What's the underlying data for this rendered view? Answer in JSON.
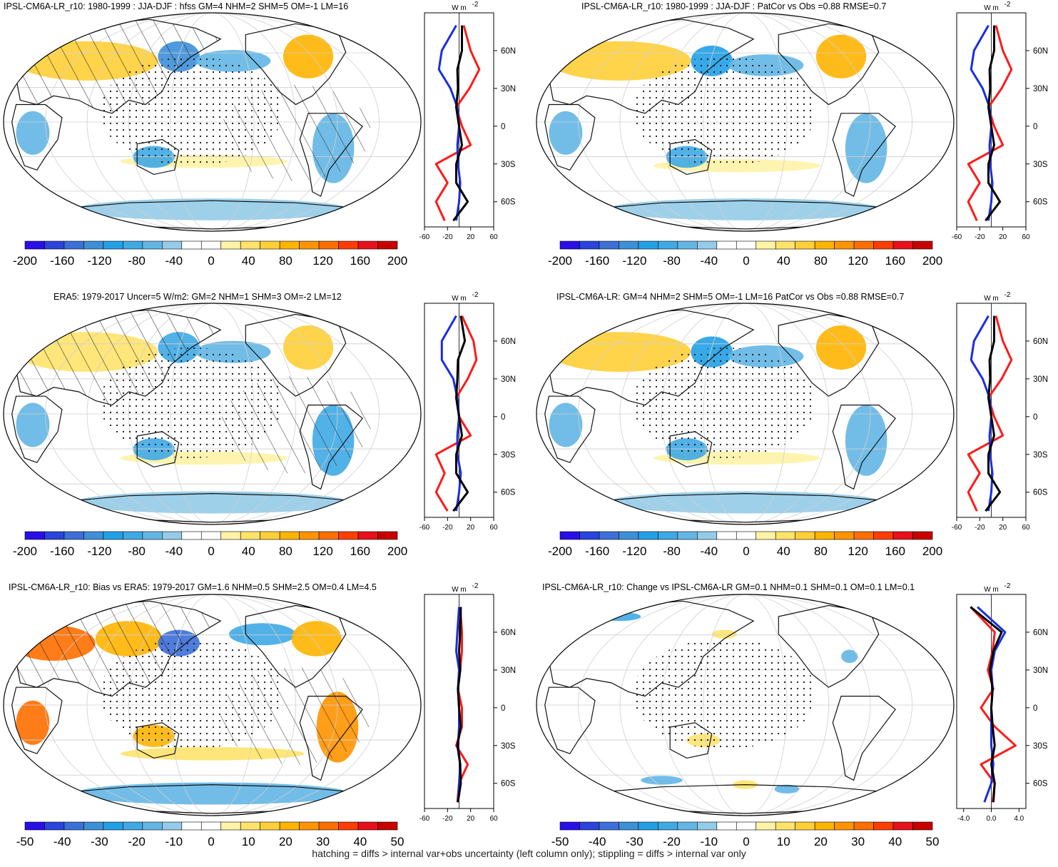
{
  "footer": "hatching = diffs > internal var+obs uncertainty (left column only); stippling = diffs > internal var only",
  "colors": {
    "colorbar": [
      "#2a0ee8",
      "#2a44dd",
      "#3c6fd8",
      "#3d8fd8",
      "#22a0e6",
      "#3fa9e4",
      "#63b6e4",
      "#94cbe8",
      "#ffffff",
      "#ffffff",
      "#fff3a6",
      "#ffe36b",
      "#ffcf37",
      "#ffb400",
      "#ff9400",
      "#ff6f00",
      "#ff3d00",
      "#e8101a",
      "#c80000"
    ],
    "land": "#dcdcdc",
    "grid": "#cfcfcf",
    "profile_obs": "#ff1a1a",
    "profile_model": "#1a2ee0",
    "profile_diff": "#000000"
  },
  "panels": [
    {
      "title": "IPSL-CM6A-LR_r10: 1980-1999 : JJA-DJF : hfss GM=4 NHM=2 SHM=5 OM=-1 LM=16",
      "colorbar_labels": [
        "-200",
        "-160",
        "-120",
        "-80",
        "-40",
        "0",
        "40",
        "80",
        "120",
        "160",
        "200"
      ],
      "profile_ticks": [
        "-60",
        "-20",
        "20",
        "60"
      ],
      "profile_unit": "W m",
      "lat_labels": [
        "60N",
        "30N",
        "0",
        "30S",
        "60S"
      ]
    },
    {
      "title": "IPSL-CM6A-LR_r10: 1980-1999 : JJA-DJF : PatCor vs Obs =0.88 RMSE=0.7",
      "colorbar_labels": [
        "-200",
        "-160",
        "-120",
        "-80",
        "-40",
        "0",
        "40",
        "80",
        "120",
        "160",
        "200"
      ],
      "profile_ticks": [
        "-60",
        "-20",
        "20",
        "60"
      ],
      "profile_unit": "W m",
      "lat_labels": [
        "60N",
        "30N",
        "0",
        "30S",
        "60S"
      ]
    },
    {
      "title": "ERA5: 1979-2017 Uncer=5 W/m2: GM=2 NHM=1 SHM=3 OM=-2 LM=12",
      "colorbar_labels": [
        "-200",
        "-160",
        "-120",
        "-80",
        "-40",
        "0",
        "40",
        "80",
        "120",
        "160",
        "200"
      ],
      "profile_ticks": [
        "-60",
        "-20",
        "20",
        "60"
      ],
      "profile_unit": "W m",
      "lat_labels": [
        "60N",
        "30N",
        "0",
        "30S",
        "60S"
      ]
    },
    {
      "title": "IPSL-CM6A-LR: GM=4 NHM=2 SHM=5 OM=-1 LM=16 PatCor vs Obs =0.88 RMSE=0.7",
      "colorbar_labels": [
        "-200",
        "-160",
        "-120",
        "-80",
        "-40",
        "0",
        "40",
        "80",
        "120",
        "160",
        "200"
      ],
      "profile_ticks": [
        "-60",
        "-20",
        "20",
        "60"
      ],
      "profile_unit": "W m",
      "lat_labels": [
        "60N",
        "30N",
        "0",
        "30S",
        "60S"
      ]
    },
    {
      "title": "IPSL-CM6A-LR_r10: Bias vs ERA5: 1979-2017 GM=1.6 NHM=0.5 SHM=2.5 OM=0.4 LM=4.5",
      "colorbar_labels": [
        "-50",
        "-40",
        "-30",
        "-20",
        "-10",
        "0",
        "10",
        "20",
        "30",
        "40",
        "50"
      ],
      "profile_ticks": [
        "-60",
        "-20",
        "20",
        "60"
      ],
      "profile_unit": "W m",
      "lat_labels": [
        "60N",
        "30N",
        "0",
        "30S",
        "60S"
      ]
    },
    {
      "title": "IPSL-CM6A-LR_r10: Change vs IPSL-CM6A-LR GM=0.1 NHM=0.1 SHM=0.1 OM=0.1 LM=0.1",
      "colorbar_labels": [
        "-50",
        "-40",
        "-30",
        "-20",
        "-10",
        "0",
        "10",
        "20",
        "30",
        "40",
        "50"
      ],
      "profile_ticks": [
        "-4.0",
        "0.0",
        "4.0"
      ],
      "profile_unit": "W m",
      "lat_labels": [
        "60N",
        "30N",
        "0",
        "30S",
        "60S"
      ]
    }
  ],
  "chart_data": [
    {
      "type": "heatmap",
      "title": "IPSL-CM6A-LR_r10: 1980-1999 : JJA-DJF : hfss GM=4 NHM=2 SHM=5 OM=-1 LM=16",
      "colorbar": [
        -200,
        -160,
        -120,
        -80,
        -40,
        0,
        40,
        80,
        120,
        160,
        200
      ],
      "profile": {
        "type": "line",
        "xlim": [
          -60,
          60
        ],
        "lat": [
          80,
          60,
          45,
          30,
          15,
          0,
          -15,
          -30,
          -45,
          -60,
          -75
        ],
        "series": [
          {
            "values": [
              8,
              20,
              35,
              18,
              -5,
              5,
              20,
              -40,
              -20,
              -40,
              -25
            ]
          },
          {
            "values": [
              -5,
              -30,
              -35,
              -15,
              -3,
              0,
              -3,
              -2,
              2,
              0,
              -5
            ]
          },
          {
            "values": [
              5,
              5,
              -3,
              -2,
              -5,
              0,
              5,
              -5,
              -5,
              15,
              -10
            ]
          }
        ]
      }
    },
    {
      "type": "heatmap",
      "title": "IPSL-CM6A-LR_r10: 1980-1999 : JJA-DJF : PatCor vs Obs =0.88 RMSE=0.7",
      "colorbar": [
        -200,
        -160,
        -120,
        -80,
        -40,
        0,
        40,
        80,
        120,
        160,
        200
      ],
      "profile": {
        "type": "line",
        "xlim": [
          -60,
          60
        ],
        "lat": [
          80,
          60,
          45,
          30,
          15,
          0,
          -15,
          -30,
          -45,
          -60,
          -75
        ],
        "series": [
          {
            "values": [
              8,
              20,
              35,
              18,
              -5,
              5,
              20,
              -40,
              -20,
              -40,
              -25
            ]
          },
          {
            "values": [
              -5,
              -30,
              -35,
              -15,
              -3,
              0,
              -3,
              -2,
              2,
              0,
              -5
            ]
          },
          {
            "values": [
              5,
              5,
              -3,
              -2,
              -5,
              0,
              5,
              -5,
              -5,
              15,
              -10
            ]
          }
        ]
      }
    },
    {
      "type": "heatmap",
      "title": "ERA5: 1979-2017 Uncer=5 W/m2: GM=2 NHM=1 SHM=3 OM=-2 LM=12",
      "colorbar": [
        -200,
        -160,
        -120,
        -80,
        -40,
        0,
        40,
        80,
        120,
        160,
        200
      ],
      "profile": {
        "type": "line",
        "xlim": [
          -60,
          60
        ],
        "lat": [
          80,
          60,
          45,
          30,
          15,
          0,
          -15,
          -30,
          -45,
          -60,
          -75
        ],
        "series": [
          {
            "values": [
              5,
              25,
              30,
              15,
              -5,
              0,
              20,
              -40,
              -25,
              -40,
              -20
            ]
          },
          {
            "values": [
              -5,
              -30,
              -30,
              -10,
              -3,
              0,
              -3,
              -3,
              3,
              0,
              -5
            ]
          },
          {
            "values": [
              3,
              10,
              -2,
              -3,
              -5,
              0,
              5,
              -5,
              -5,
              15,
              -10
            ]
          }
        ]
      }
    },
    {
      "type": "heatmap",
      "title": "IPSL-CM6A-LR: GM=4 NHM=2 SHM=5 OM=-1 LM=16 PatCor vs Obs =0.88 RMSE=0.7",
      "colorbar": [
        -200,
        -160,
        -120,
        -80,
        -40,
        0,
        40,
        80,
        120,
        160,
        200
      ],
      "profile": {
        "type": "line",
        "xlim": [
          -60,
          60
        ],
        "lat": [
          80,
          60,
          45,
          30,
          15,
          0,
          -15,
          -30,
          -45,
          -60,
          -75
        ],
        "series": [
          {
            "values": [
              8,
              20,
              35,
              18,
              -5,
              5,
              20,
              -40,
              -20,
              -40,
              -25
            ]
          },
          {
            "values": [
              -5,
              -30,
              -35,
              -15,
              -3,
              0,
              -3,
              -2,
              2,
              0,
              -5
            ]
          },
          {
            "values": [
              5,
              5,
              -3,
              -2,
              -5,
              0,
              5,
              -5,
              -5,
              15,
              -10
            ]
          }
        ]
      }
    },
    {
      "type": "heatmap",
      "title": "IPSL-CM6A-LR_r10: Bias vs ERA5: 1979-2017 GM=1.6 NHM=0.5 SHM=2.5 OM=0.4 LM=4.5",
      "colorbar": [
        -50,
        -40,
        -30,
        -20,
        -10,
        0,
        10,
        20,
        30,
        40,
        50
      ],
      "profile": {
        "type": "line",
        "xlim": [
          -60,
          60
        ],
        "lat": [
          80,
          60,
          45,
          30,
          15,
          0,
          -15,
          -30,
          -45,
          -60,
          -75
        ],
        "series": [
          {
            "values": [
              2,
              5,
              5,
              2,
              -2,
              5,
              5,
              -5,
              15,
              0,
              -3
            ]
          },
          {
            "values": [
              0,
              -3,
              -5,
              0,
              -2,
              0,
              0,
              -2,
              2,
              0,
              -2
            ]
          },
          {
            "values": [
              3,
              2,
              0,
              2,
              -2,
              0,
              3,
              -3,
              2,
              3,
              -2
            ]
          }
        ]
      }
    },
    {
      "type": "heatmap",
      "title": "IPSL-CM6A-LR_r10: Change vs IPSL-CM6A-LR GM=0.1 NHM=0.1 SHM=0.1 OM=0.1 LM=0.1",
      "colorbar": [
        -50,
        -40,
        -30,
        -20,
        -10,
        0,
        10,
        20,
        30,
        40,
        50
      ],
      "profile": {
        "type": "line",
        "xlim": [
          -5,
          5
        ],
        "lat": [
          80,
          60,
          45,
          30,
          15,
          0,
          -15,
          -30,
          -45,
          -60,
          -75
        ],
        "series": [
          {
            "values": [
              -3,
              0.5,
              0.2,
              -0.5,
              0.3,
              -1.5,
              0.5,
              3.5,
              -1.5,
              0.5,
              0.2
            ]
          },
          {
            "values": [
              -2,
              2,
              0.5,
              0,
              0.2,
              0,
              0,
              0,
              0.3,
              0,
              -1
            ]
          },
          {
            "values": [
              -3,
              1.5,
              0.3,
              -0.2,
              0.2,
              0,
              0.2,
              0.5,
              0,
              0.5,
              0.3
            ]
          }
        ]
      }
    }
  ]
}
